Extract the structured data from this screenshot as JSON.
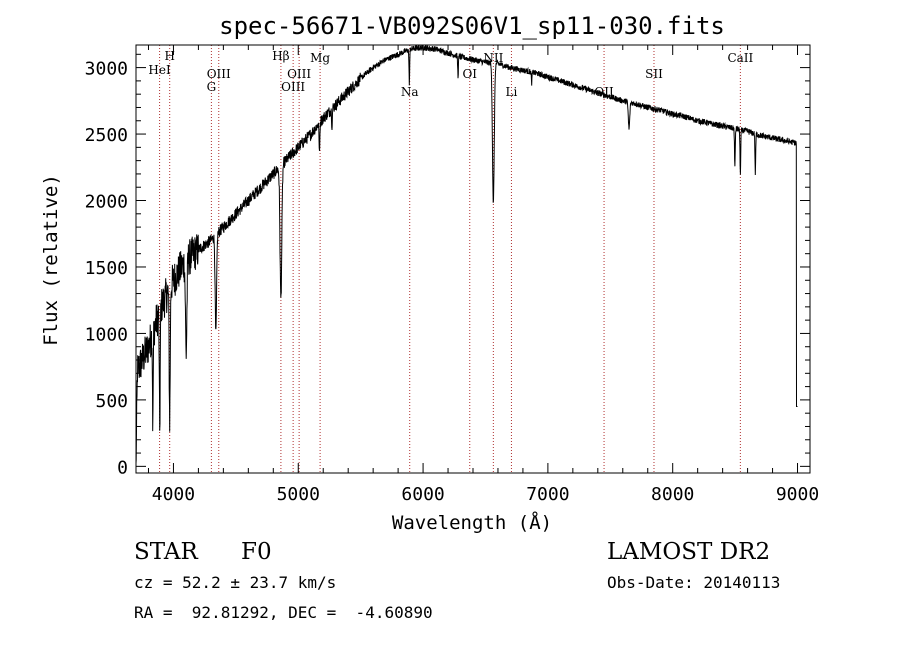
{
  "chart_data": {
    "type": "line",
    "title": "spec-56671-VB092S06V1_sp11-030.fits",
    "xlabel": "Wavelength (Å)",
    "ylabel": "Flux (relative)",
    "xlim": [
      3700,
      9100
    ],
    "ylim": [
      -50,
      3170
    ],
    "xticks": [
      4000,
      5000,
      6000,
      7000,
      8000,
      9000
    ],
    "yticks": [
      0,
      500,
      1000,
      1500,
      2000,
      2500,
      3000
    ],
    "grid": false,
    "legend": "none",
    "line_color": "#000000",
    "marker_color": "#b03030",
    "continuum": {
      "x": [
        3700,
        3800,
        3900,
        4000,
        4100,
        4200,
        4300,
        4400,
        4500,
        4600,
        4700,
        4800,
        4900,
        5000,
        5100,
        5200,
        5300,
        5400,
        5500,
        5600,
        5700,
        5800,
        5900,
        6000,
        6100,
        6200,
        6300,
        6400,
        6500,
        6600,
        6700,
        6800,
        6900,
        7000,
        7100,
        7200,
        7300,
        7400,
        7500,
        7600,
        7700,
        7800,
        7900,
        8000,
        8100,
        8200,
        8300,
        8400,
        8500,
        8600,
        8700,
        8800,
        8900,
        9000
      ],
      "y": [
        700,
        900,
        1200,
        1400,
        1550,
        1630,
        1700,
        1800,
        1900,
        2000,
        2100,
        2200,
        2300,
        2400,
        2500,
        2620,
        2720,
        2820,
        2920,
        3000,
        3060,
        3100,
        3140,
        3150,
        3140,
        3110,
        3080,
        3060,
        3040,
        3030,
        3000,
        2980,
        2960,
        2930,
        2900,
        2870,
        2840,
        2810,
        2780,
        2750,
        2730,
        2700,
        2680,
        2650,
        2630,
        2600,
        2580,
        2560,
        2540,
        2520,
        2490,
        2470,
        2450,
        2430
      ]
    },
    "absorption_lines": [
      {
        "x": 3835,
        "depth": 700,
        "width": 4
      },
      {
        "x": 3890,
        "depth": 900,
        "width": 5
      },
      {
        "x": 3970,
        "depth": 1000,
        "width": 6
      },
      {
        "x": 4102,
        "depth": 700,
        "width": 8
      },
      {
        "x": 4340,
        "depth": 750,
        "width": 8
      },
      {
        "x": 4861,
        "depth": 1000,
        "width": 10
      },
      {
        "x": 5170,
        "depth": 250,
        "width": 4
      },
      {
        "x": 5270,
        "depth": 120,
        "width": 4
      },
      {
        "x": 5890,
        "depth": 250,
        "width": 4
      },
      {
        "x": 6280,
        "depth": 150,
        "width": 4
      },
      {
        "x": 6563,
        "depth": 1050,
        "width": 10
      },
      {
        "x": 6870,
        "depth": 80,
        "width": 4
      },
      {
        "x": 7650,
        "depth": 200,
        "width": 8
      },
      {
        "x": 8498,
        "depth": 300,
        "width": 4
      },
      {
        "x": 8542,
        "depth": 350,
        "width": 4
      },
      {
        "x": 8662,
        "depth": 300,
        "width": 4
      }
    ],
    "line_markers": [
      {
        "x": 3889,
        "label": "HeI"
      },
      {
        "x": 3970,
        "label": "H"
      },
      {
        "x": 4304,
        "label": "G"
      },
      {
        "x": 4363,
        "label": "OIII"
      },
      {
        "x": 4861,
        "label": "Hβ"
      },
      {
        "x": 4959,
        "label": "OIII"
      },
      {
        "x": 5007,
        "label": "OIII"
      },
      {
        "x": 5175,
        "label": "Mg"
      },
      {
        "x": 5893,
        "label": "Na"
      },
      {
        "x": 6374,
        "label": "OI"
      },
      {
        "x": 6563,
        "label": "NII"
      },
      {
        "x": 6708,
        "label": "Li"
      },
      {
        "x": 7450,
        "label": "OII"
      },
      {
        "x": 7850,
        "label": "SII"
      },
      {
        "x": 8542,
        "label": "CaII"
      }
    ]
  },
  "info": {
    "object_class": "STAR",
    "subclass": "F0",
    "redshift": "cz = 52.2 ± 23.7 km/s",
    "coordinates": "RA =  92.81292, DEC =  -4.60890",
    "survey": "LAMOST DR2",
    "obs_date": "Obs-Date: 20140113"
  }
}
